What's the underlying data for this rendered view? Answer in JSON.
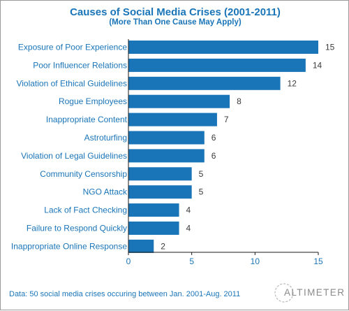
{
  "title": "Causes of Social Media Crises (2001-2011)",
  "subtitle": "(More Than One Cause May Apply)",
  "footnote": "Data: 50 social media crises occuring between Jan. 2001-Aug. 2011",
  "logo_text": "ALTIMETER",
  "colors": {
    "bar": "#1a75b8",
    "label": "#1a75b8",
    "value": "#3a3a3a",
    "axis": "#1a1a1a"
  },
  "chart_data": {
    "type": "bar",
    "orientation": "horizontal",
    "title": "Causes of Social Media Crises (2001-2011)",
    "subtitle": "(More Than One Cause May Apply)",
    "categories": [
      "Exposure of Poor Experience",
      "Poor Influencer Relations",
      "Violation of Ethical Guidelines",
      "Rogue Employees",
      "Inappropriate Content",
      "Astroturfing",
      "Violation of Legal Guidelines",
      "Community Censorship",
      "NGO Attack",
      "Lack of Fact Checking",
      "Failure to Respond Quickly",
      "Inappropriate Online Response"
    ],
    "values": [
      15,
      14,
      12,
      8,
      7,
      6,
      6,
      5,
      5,
      4,
      4,
      2
    ],
    "xlim": [
      0,
      15
    ],
    "xticks": [
      0,
      5,
      10,
      15
    ],
    "grid": false,
    "data_labels": true
  }
}
